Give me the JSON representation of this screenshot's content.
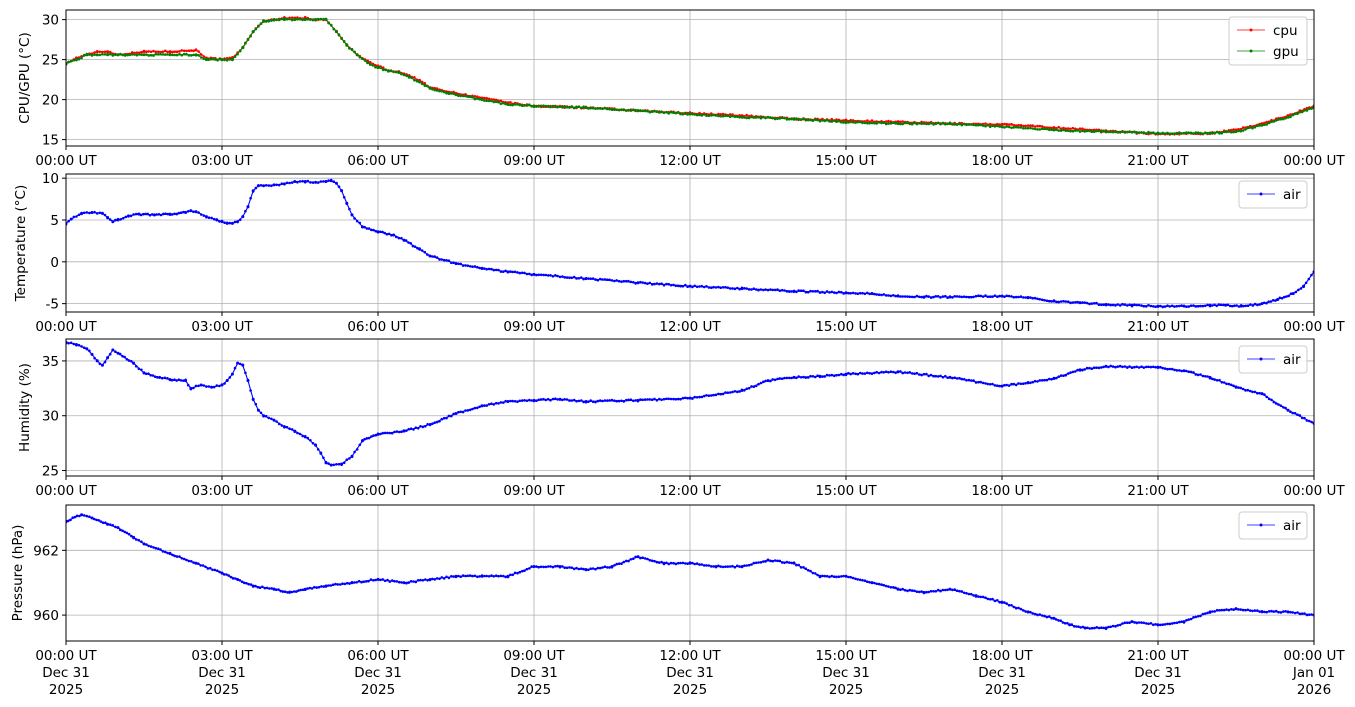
{
  "chart_data": [
    {
      "type": "line",
      "ylabel": "CPU/GPU (°C)",
      "ylim": [
        14.2,
        31.2
      ],
      "yticks": [
        15,
        20,
        25,
        30
      ],
      "xlim": [
        0,
        24
      ],
      "xticks": [
        0,
        3,
        6,
        9,
        12,
        15,
        18,
        21,
        24
      ],
      "xtick_labels": [
        "00:00 UT",
        "03:00 UT",
        "06:00 UT",
        "09:00 UT",
        "12:00 UT",
        "15:00 UT",
        "18:00 UT",
        "21:00 UT",
        "00:00 UT"
      ],
      "grid": true,
      "legend_position": "upper-right",
      "series": [
        {
          "name": "cpu",
          "color": "#ff0000",
          "x": [
            0,
            0.2,
            0.4,
            0.6,
            0.8,
            1,
            1.5,
            2,
            2.5,
            2.7,
            3,
            3.2,
            3.4,
            3.6,
            3.8,
            4,
            4.2,
            4.4,
            4.6,
            4.8,
            5,
            5.2,
            5.4,
            5.6,
            5.8,
            6,
            6.2,
            6.4,
            6.6,
            6.8,
            7,
            7.5,
            8,
            8.5,
            9,
            10,
            11,
            12,
            13,
            14,
            15,
            16,
            17,
            18,
            19,
            20,
            21,
            22,
            22.5,
            23,
            23.5,
            24
          ],
          "y": [
            24.5,
            25.2,
            25.6,
            26,
            26,
            25.6,
            26,
            26,
            26.2,
            25.2,
            25,
            25.2,
            26.5,
            28.5,
            29.8,
            30,
            30.2,
            30.2,
            30.2,
            30,
            30,
            28.5,
            26.8,
            25.6,
            24.8,
            24.2,
            23.6,
            23.5,
            23,
            22.4,
            21.5,
            20.8,
            20.2,
            19.6,
            19.2,
            19,
            18.6,
            18.3,
            18,
            17.6,
            17.4,
            17.2,
            17,
            16.9,
            16.5,
            16.1,
            15.7,
            15.8,
            16.2,
            17,
            18,
            19.2
          ]
        },
        {
          "name": "gpu",
          "color": "#008000",
          "x": [
            0,
            0.2,
            0.4,
            0.6,
            0.8,
            1,
            1.5,
            2,
            2.5,
            2.7,
            3,
            3.2,
            3.4,
            3.6,
            3.8,
            4,
            4.2,
            4.4,
            4.6,
            4.8,
            5,
            5.2,
            5.4,
            5.6,
            5.8,
            6,
            6.2,
            6.4,
            6.6,
            6.8,
            7,
            7.5,
            8,
            8.5,
            9,
            10,
            11,
            12,
            13,
            14,
            15,
            16,
            17,
            18,
            19,
            20,
            21,
            22,
            22.5,
            23,
            23.5,
            24
          ],
          "y": [
            24.5,
            25,
            25.6,
            25.6,
            25.6,
            25.6,
            25.6,
            25.6,
            25.6,
            25,
            25,
            25,
            26.5,
            28.5,
            29.8,
            30,
            30,
            30,
            30,
            30,
            30,
            28.5,
            26.8,
            25.6,
            24.6,
            24,
            23.6,
            23.4,
            22.8,
            22.2,
            21.4,
            20.6,
            20,
            19.4,
            19.2,
            19,
            18.6,
            18.2,
            17.8,
            17.6,
            17.2,
            17,
            17,
            16.6,
            16.2,
            16,
            15.8,
            15.8,
            16,
            16.8,
            17.8,
            19
          ]
        }
      ]
    },
    {
      "type": "line",
      "ylabel": "Temperature (°C)",
      "ylim": [
        -6,
        10.5
      ],
      "yticks": [
        -5,
        0,
        5,
        10
      ],
      "xlim": [
        0,
        24
      ],
      "xticks": [
        0,
        3,
        6,
        9,
        12,
        15,
        18,
        21,
        24
      ],
      "xtick_labels": [
        "00:00 UT",
        "03:00 UT",
        "06:00 UT",
        "09:00 UT",
        "12:00 UT",
        "15:00 UT",
        "18:00 UT",
        "21:00 UT",
        "00:00 UT"
      ],
      "grid": true,
      "legend_position": "upper-right",
      "series": [
        {
          "name": "air",
          "color": "#0000ff",
          "x": [
            0,
            0.1,
            0.3,
            0.5,
            0.7,
            0.8,
            0.9,
            1.0,
            1.2,
            1.4,
            1.7,
            2.0,
            2.3,
            2.4,
            2.5,
            2.7,
            2.9,
            3.0,
            3.1,
            3.2,
            3.3,
            3.4,
            3.5,
            3.6,
            3.7,
            3.8,
            4.0,
            4.2,
            4.4,
            4.6,
            4.8,
            5.0,
            5.1,
            5.2,
            5.3,
            5.4,
            5.5,
            5.7,
            6.0,
            6.3,
            6.5,
            6.8,
            7.0,
            7.5,
            8.0,
            8.5,
            9.0,
            10.0,
            11.0,
            12.0,
            13.0,
            14.0,
            15.0,
            15.5,
            16.0,
            16.5,
            17.0,
            18.0,
            18.5,
            19.0,
            19.5,
            20.0,
            20.5,
            21.0,
            21.5,
            22.0,
            22.3,
            22.6,
            23.0,
            23.3,
            23.6,
            23.8,
            24.0
          ],
          "y": [
            4.6,
            5.1,
            5.8,
            5.9,
            5.8,
            5.3,
            4.8,
            5.0,
            5.5,
            5.7,
            5.6,
            5.7,
            5.9,
            6.1,
            6.0,
            5.4,
            5.0,
            4.8,
            4.6,
            4.6,
            4.8,
            5.4,
            6.6,
            8.5,
            9.1,
            9.1,
            9.2,
            9.3,
            9.6,
            9.6,
            9.5,
            9.6,
            9.7,
            9.4,
            8.5,
            7.0,
            5.6,
            4.2,
            3.6,
            3.2,
            2.6,
            1.5,
            0.7,
            -0.2,
            -0.8,
            -1.2,
            -1.5,
            -2.0,
            -2.5,
            -2.9,
            -3.2,
            -3.5,
            -3.7,
            -3.8,
            -4.1,
            -4.2,
            -4.2,
            -4.1,
            -4.3,
            -4.7,
            -4.9,
            -5.1,
            -5.2,
            -5.3,
            -5.3,
            -5.2,
            -5.2,
            -5.3,
            -5.0,
            -4.5,
            -3.8,
            -2.9,
            -1.2
          ]
        }
      ]
    },
    {
      "type": "line",
      "ylabel": "Humidity (%)",
      "ylim": [
        24.5,
        37
      ],
      "yticks": [
        25,
        30,
        35
      ],
      "xlim": [
        0,
        24
      ],
      "xticks": [
        0,
        3,
        6,
        9,
        12,
        15,
        18,
        21,
        24
      ],
      "xtick_labels": [
        "00:00 UT",
        "03:00 UT",
        "06:00 UT",
        "09:00 UT",
        "12:00 UT",
        "15:00 UT",
        "18:00 UT",
        "21:00 UT",
        "00:00 UT"
      ],
      "grid": true,
      "legend_position": "upper-right",
      "series": [
        {
          "name": "air",
          "color": "#0000ff",
          "x": [
            0,
            0.2,
            0.4,
            0.5,
            0.6,
            0.7,
            0.8,
            0.9,
            1.0,
            1.3,
            1.5,
            1.8,
            2.0,
            2.3,
            2.4,
            2.6,
            2.8,
            3.0,
            3.1,
            3.2,
            3.3,
            3.4,
            3.5,
            3.6,
            3.7,
            3.8,
            4.0,
            4.2,
            4.4,
            4.6,
            4.8,
            4.9,
            5.0,
            5.1,
            5.3,
            5.5,
            5.7,
            6.0,
            6.5,
            7.0,
            7.5,
            8.0,
            8.5,
            9.0,
            9.5,
            10.0,
            11.0,
            12.0,
            13.0,
            13.5,
            14.0,
            14.5,
            15.0,
            16.0,
            17.0,
            18.0,
            18.5,
            19.0,
            19.5,
            20.0,
            21.0,
            21.5,
            22.0,
            22.5,
            23.0,
            23.5,
            24.0
          ],
          "y": [
            36.7,
            36.5,
            36.1,
            35.6,
            35.0,
            34.6,
            35.3,
            36.0,
            35.7,
            34.8,
            33.9,
            33.5,
            33.3,
            33.2,
            32.5,
            32.8,
            32.6,
            32.8,
            33.2,
            33.8,
            34.8,
            34.6,
            33.2,
            31.5,
            30.5,
            30.0,
            29.6,
            29.0,
            28.6,
            28.1,
            27.3,
            26.6,
            25.7,
            25.5,
            25.6,
            26.3,
            27.7,
            28.3,
            28.6,
            29.2,
            30.2,
            30.9,
            31.3,
            31.4,
            31.5,
            31.3,
            31.4,
            31.6,
            32.3,
            33.2,
            33.5,
            33.6,
            33.8,
            34.0,
            33.5,
            32.7,
            33.0,
            33.4,
            34.2,
            34.5,
            34.4,
            34.1,
            33.5,
            32.6,
            32.0,
            30.5,
            29.3
          ]
        }
      ]
    },
    {
      "type": "line",
      "ylabel": "Pressure (hPa)",
      "ylim": [
        959.2,
        963.4
      ],
      "yticks": [
        960,
        962
      ],
      "xlim": [
        0,
        24
      ],
      "xticks": [
        0,
        3,
        6,
        9,
        12,
        15,
        18,
        21,
        24
      ],
      "xtick_labels": [
        [
          "00:00 UT",
          "Dec 31",
          "2025"
        ],
        [
          "03:00 UT",
          "Dec 31",
          "2025"
        ],
        [
          "06:00 UT",
          "Dec 31",
          "2025"
        ],
        [
          "09:00 UT",
          "Dec 31",
          "2025"
        ],
        [
          "12:00 UT",
          "Dec 31",
          "2025"
        ],
        [
          "15:00 UT",
          "Dec 31",
          "2025"
        ],
        [
          "18:00 UT",
          "Dec 31",
          "2025"
        ],
        [
          "21:00 UT",
          "Dec 31",
          "2025"
        ],
        [
          "00:00 UT",
          "Jan 01",
          "2026"
        ]
      ],
      "grid": true,
      "legend_position": "upper-right",
      "series": [
        {
          "name": "air",
          "color": "#0000ff",
          "x": [
            0,
            0.3,
            0.5,
            0.8,
            1.0,
            1.3,
            1.5,
            2.0,
            2.5,
            3.0,
            3.3,
            3.6,
            4.0,
            4.3,
            4.6,
            5.0,
            5.5,
            6.0,
            6.5,
            7.0,
            7.5,
            8.0,
            8.5,
            9.0,
            9.5,
            10.0,
            10.5,
            11.0,
            11.5,
            12.0,
            12.5,
            13.0,
            13.5,
            14.0,
            14.5,
            15.0,
            15.5,
            16.0,
            16.5,
            17.0,
            17.5,
            18.0,
            18.5,
            19.0,
            19.3,
            19.6,
            20.0,
            20.5,
            21.0,
            21.5,
            22.0,
            22.5,
            23.0,
            23.5,
            24.0
          ],
          "y": [
            962.9,
            963.1,
            963.0,
            962.8,
            962.7,
            962.4,
            962.2,
            961.9,
            961.6,
            961.3,
            961.1,
            960.9,
            960.8,
            960.7,
            960.8,
            960.9,
            961.0,
            961.1,
            961.0,
            961.1,
            961.2,
            961.2,
            961.2,
            961.5,
            961.5,
            961.4,
            961.5,
            961.8,
            961.6,
            961.6,
            961.5,
            961.5,
            961.7,
            961.6,
            961.2,
            961.2,
            961.0,
            960.8,
            960.7,
            960.8,
            960.6,
            960.4,
            960.1,
            959.9,
            959.7,
            959.6,
            959.6,
            959.8,
            959.7,
            959.8,
            960.1,
            960.2,
            960.1,
            960.1,
            960.0
          ]
        }
      ]
    }
  ]
}
